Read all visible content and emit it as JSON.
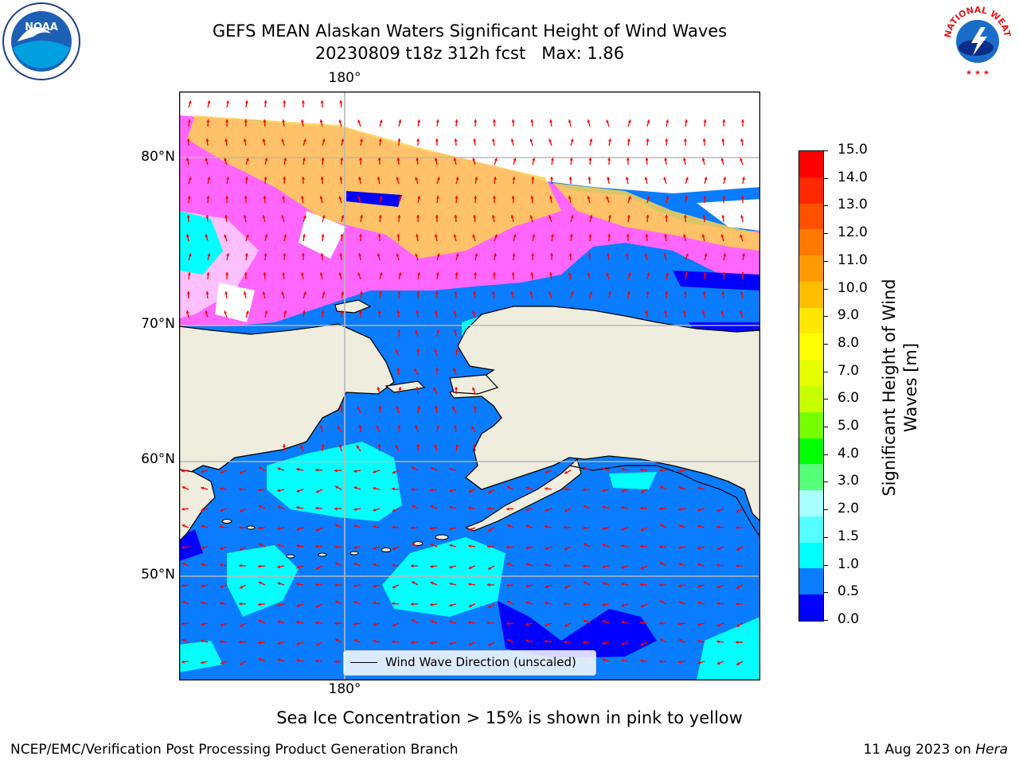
{
  "header": {
    "title_line1": "GEFS MEAN Alaskan Waters Significant Height of Wind Waves",
    "title_line2": "20230809 t18z 312h fcst   Max: 1.86"
  },
  "logos": {
    "left": "NOAA",
    "right": "NATIONAL WEATHER SERVICE"
  },
  "map": {
    "lon_label_top": "180°",
    "lon_label_bottom": "180°",
    "lat_labels": [
      "80°N",
      "70°N",
      "60°N",
      "50°N"
    ],
    "legend_label": "Wind Wave Direction (unscaled)",
    "colors": {
      "land": "#efedde",
      "open_sea": "#0a7cff",
      "calm": "#0000ff",
      "cyan": "#00ffff",
      "ice_pink": "#ff66ff",
      "ice_yellow": "#ffd24d",
      "arrow": "#ff0000"
    }
  },
  "colorbar": {
    "label_line1": "Significant Height of Wind",
    "label_line2": "Waves [m]",
    "ticks": [
      "15.0",
      "14.0",
      "13.0",
      "12.0",
      "11.0",
      "10.0",
      "9.0",
      "8.0",
      "7.0",
      "6.0",
      "5.0",
      "4.0",
      "3.0",
      "2.0",
      "1.5",
      "1.0",
      "0.5",
      "0.0"
    ],
    "colors": [
      "#ff0000",
      "#ff2800",
      "#ff5000",
      "#ff7800",
      "#ff9b00",
      "#ffbe00",
      "#ffe600",
      "#ffff00",
      "#e6ff00",
      "#c8ff00",
      "#78ff00",
      "#00ff00",
      "#55ff77",
      "#aaffff",
      "#55ffff",
      "#00ffff",
      "#0a7cff",
      "#0000ff"
    ]
  },
  "footer": {
    "note": "Sea Ice Concentration > 15% is shown in pink to yellow",
    "left": "NCEP/EMC/Verification Post Processing Product Generation Branch",
    "date": "11 Aug 2023 on ",
    "machine": "Hera"
  }
}
